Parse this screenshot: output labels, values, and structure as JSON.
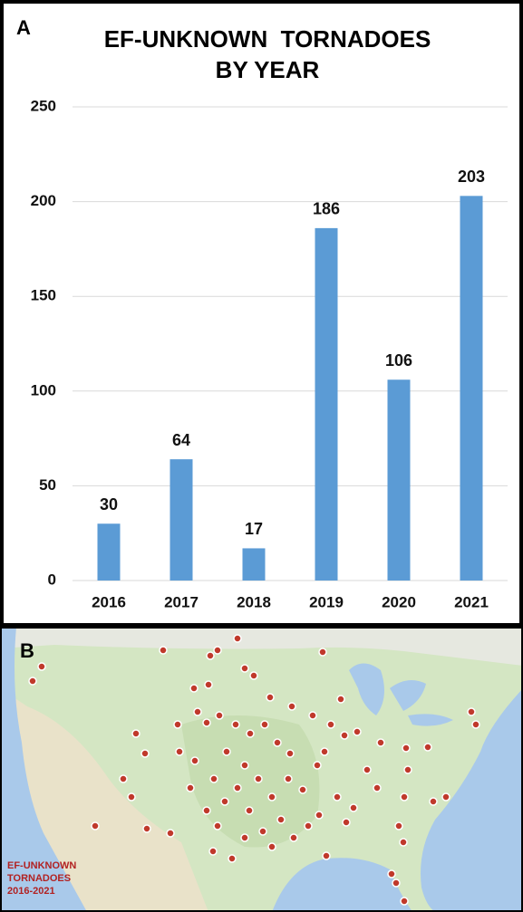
{
  "chart_data": {
    "type": "bar",
    "panel_label": "A",
    "title": [
      "EF-UNKNOWN  TORNADOES",
      "BY YEAR"
    ],
    "categories": [
      "2016",
      "2017",
      "2018",
      "2019",
      "2020",
      "2021"
    ],
    "values": [
      30,
      64,
      17,
      186,
      106,
      203
    ],
    "color": "#5b9bd5",
    "ylim": [
      0,
      250
    ],
    "yticks": [
      0,
      50,
      100,
      150,
      200,
      250
    ],
    "grid": true,
    "data_labels": true
  },
  "map": {
    "panel_label": "B",
    "caption": [
      "EF-UNKNOWN",
      "TORNADOES",
      "2016-2021"
    ]
  }
}
